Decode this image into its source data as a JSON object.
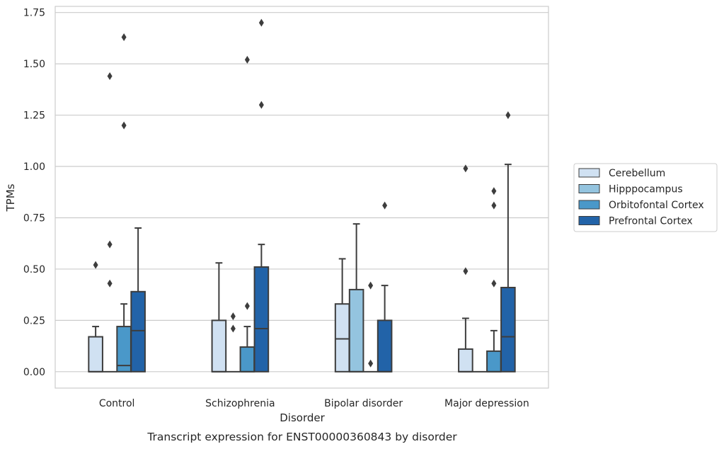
{
  "caption": "Transcript expression for ENST00000360843 by disorder",
  "chart_data": {
    "type": "box",
    "xlabel": "Disorder",
    "ylabel": "TPMs",
    "ylim": [
      -0.08,
      1.78
    ],
    "yticks": [
      0.0,
      0.25,
      0.5,
      0.75,
      1.0,
      1.25,
      1.5,
      1.75
    ],
    "ytick_labels": [
      "0.00",
      "0.25",
      "0.50",
      "0.75",
      "1.00",
      "1.25",
      "1.50",
      "1.75"
    ],
    "grid": "horizontal",
    "legend_position": "right",
    "categories": [
      "Control",
      "Schizophrenia",
      "Bipolar disorder",
      "Major depression"
    ],
    "series": [
      {
        "name": "Cerebellum",
        "color": "#d0e1f2",
        "boxes": [
          {
            "q1": 0.0,
            "median": 0.0,
            "q3": 0.17,
            "whisker_low": 0.0,
            "whisker_high": 0.22,
            "outliers": [
              0.52
            ]
          },
          {
            "q1": 0.0,
            "median": 0.0,
            "q3": 0.25,
            "whisker_low": 0.0,
            "whisker_high": 0.53,
            "outliers": []
          },
          {
            "q1": 0.0,
            "median": 0.16,
            "q3": 0.33,
            "whisker_low": 0.0,
            "whisker_high": 0.55,
            "outliers": []
          },
          {
            "q1": 0.0,
            "median": 0.0,
            "q3": 0.11,
            "whisker_low": 0.0,
            "whisker_high": 0.26,
            "outliers": [
              0.49,
              0.99
            ]
          }
        ]
      },
      {
        "name": "Hipppocampus",
        "color": "#94c4df",
        "boxes": [
          {
            "q1": 0.0,
            "median": 0.0,
            "q3": 0.0,
            "whisker_low": 0.0,
            "whisker_high": 0.0,
            "outliers": [
              0.43,
              0.62,
              1.44
            ]
          },
          {
            "q1": 0.0,
            "median": 0.0,
            "q3": 0.0,
            "whisker_low": 0.0,
            "whisker_high": 0.0,
            "outliers": [
              0.21,
              0.27
            ]
          },
          {
            "q1": 0.0,
            "median": 0.0,
            "q3": 0.4,
            "whisker_low": 0.0,
            "whisker_high": 0.72,
            "outliers": []
          },
          {
            "q1": 0.0,
            "median": 0.0,
            "q3": 0.0,
            "whisker_low": 0.0,
            "whisker_high": 0.0,
            "outliers": []
          }
        ]
      },
      {
        "name": "Orbitofontal Cortex",
        "color": "#4a98c9",
        "boxes": [
          {
            "q1": 0.0,
            "median": 0.03,
            "q3": 0.22,
            "whisker_low": 0.0,
            "whisker_high": 0.33,
            "outliers": [
              1.2,
              1.63
            ]
          },
          {
            "q1": 0.0,
            "median": 0.0,
            "q3": 0.12,
            "whisker_low": 0.0,
            "whisker_high": 0.22,
            "outliers": [
              0.32,
              1.52
            ]
          },
          {
            "q1": 0.0,
            "median": 0.0,
            "q3": 0.0,
            "whisker_low": 0.0,
            "whisker_high": 0.0,
            "outliers": [
              0.04,
              0.42
            ]
          },
          {
            "q1": 0.0,
            "median": 0.0,
            "q3": 0.1,
            "whisker_low": 0.0,
            "whisker_high": 0.2,
            "outliers": [
              0.43,
              0.81,
              0.88
            ]
          }
        ]
      },
      {
        "name": "Prefrontal Cortex",
        "color": "#2263a8",
        "boxes": [
          {
            "q1": 0.0,
            "median": 0.2,
            "q3": 0.39,
            "whisker_low": 0.0,
            "whisker_high": 0.7,
            "outliers": []
          },
          {
            "q1": 0.0,
            "median": 0.21,
            "q3": 0.51,
            "whisker_low": 0.0,
            "whisker_high": 0.62,
            "outliers": [
              1.3,
              1.7
            ]
          },
          {
            "q1": 0.0,
            "median": 0.0,
            "q3": 0.25,
            "whisker_low": 0.0,
            "whisker_high": 0.42,
            "outliers": [
              0.81
            ]
          },
          {
            "q1": 0.0,
            "median": 0.17,
            "q3": 0.41,
            "whisker_low": 0.0,
            "whisker_high": 1.01,
            "outliers": [
              1.25
            ]
          }
        ]
      }
    ]
  }
}
